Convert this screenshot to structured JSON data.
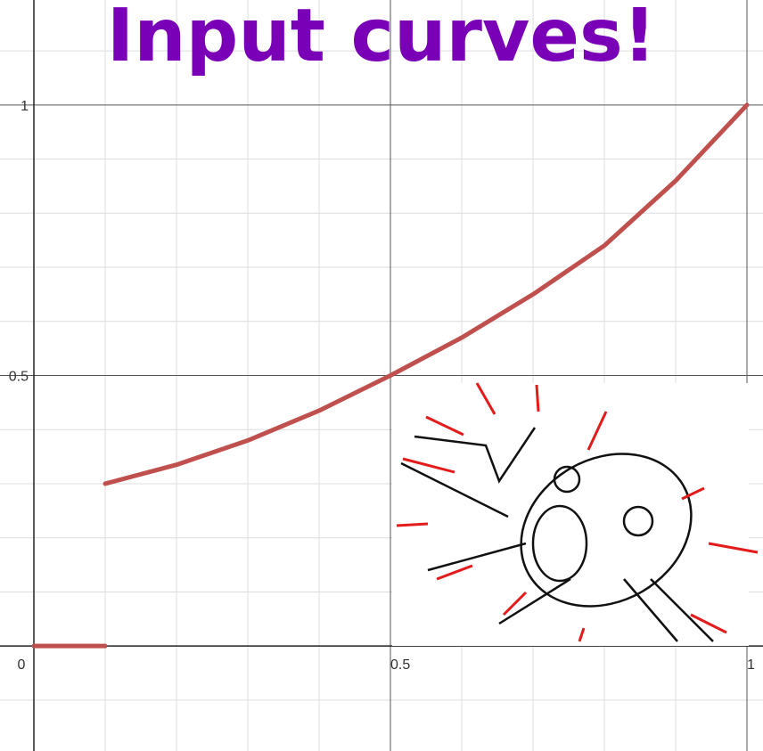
{
  "chart_data": {
    "type": "line",
    "title": "Input curves!",
    "x": [
      0,
      0.1,
      0.1,
      0.1,
      0.2,
      0.3,
      0.4,
      0.5,
      0.6,
      0.7,
      0.8,
      0.9,
      1
    ],
    "values": [
      0,
      0,
      null,
      0.3,
      0.335,
      0.38,
      0.435,
      0.5,
      0.57,
      0.65,
      0.74,
      0.86,
      1
    ],
    "color": "#c0504d",
    "xlim": [
      -0.0475,
      1.0225
    ],
    "ylim": [
      -0.194,
      1.194
    ],
    "xticks": [
      0,
      0.5,
      1
    ],
    "yticks": [
      0.5,
      1
    ],
    "xgrid": [
      -0.1,
      0.1,
      0.2,
      0.3,
      0.4,
      0.6,
      0.7,
      0.8,
      0.9
    ],
    "ygrid": [
      -0.1,
      0.1,
      0.2,
      0.3,
      0.4,
      0.6,
      0.7,
      0.8,
      0.9,
      1.1
    ],
    "grid": true
  }
}
